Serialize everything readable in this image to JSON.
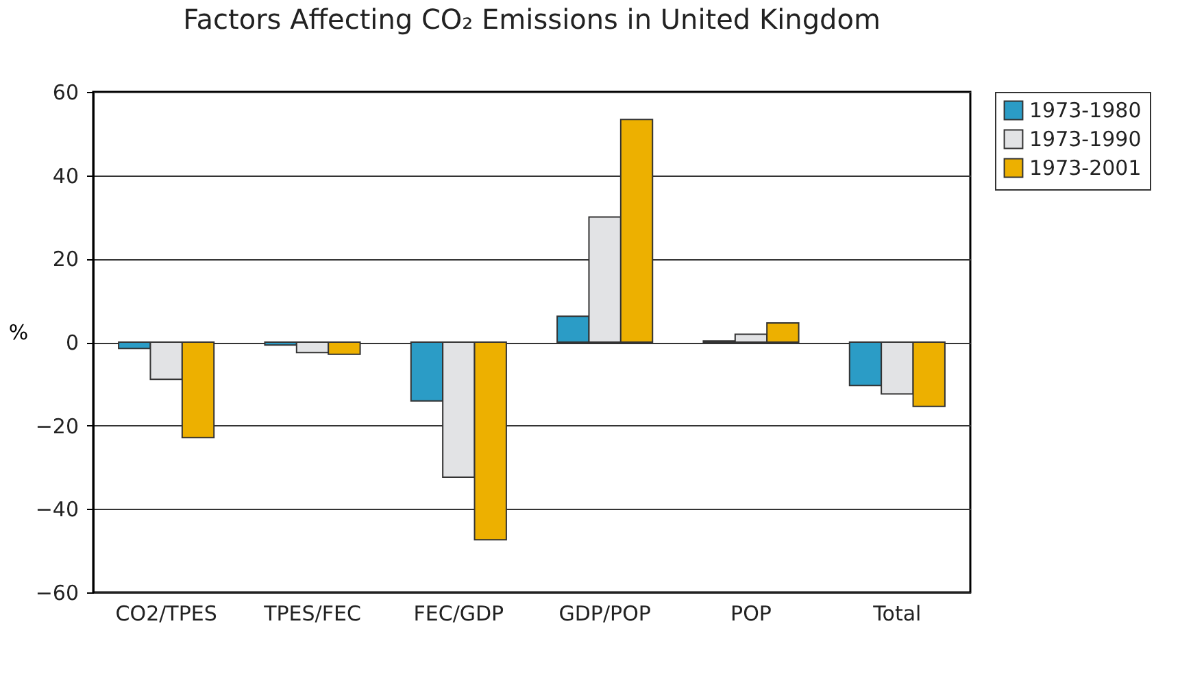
{
  "chart_data": {
    "type": "bar",
    "title": "Factors Affecting CO₂ Emissions in United Kingdom",
    "ylabel": "%",
    "categories": [
      "CO2/TPES",
      "TPES/FEC",
      "FEC/GDP",
      "GDP/POP",
      "POP",
      "Total"
    ],
    "series": [
      {
        "name": "1973-1980",
        "color": "#2b9cc6",
        "values": [
          -1.5,
          -0.7,
          -14.1,
          6.2,
          0.3,
          -10.4
        ]
      },
      {
        "name": "1973-1990",
        "color": "#e2e3e5",
        "values": [
          -8.9,
          -2.5,
          -32.4,
          30,
          1.9,
          -12.4
        ]
      },
      {
        "name": "1973-2001",
        "color": "#edb000",
        "values": [
          -22.9,
          -2.9,
          -47.4,
          53.4,
          4.6,
          -15.4
        ]
      }
    ],
    "ylim": [
      -60,
      60
    ],
    "yticks": [
      -60,
      -40,
      -20,
      0,
      20,
      40,
      60
    ],
    "grid": "y",
    "legend": "right"
  }
}
